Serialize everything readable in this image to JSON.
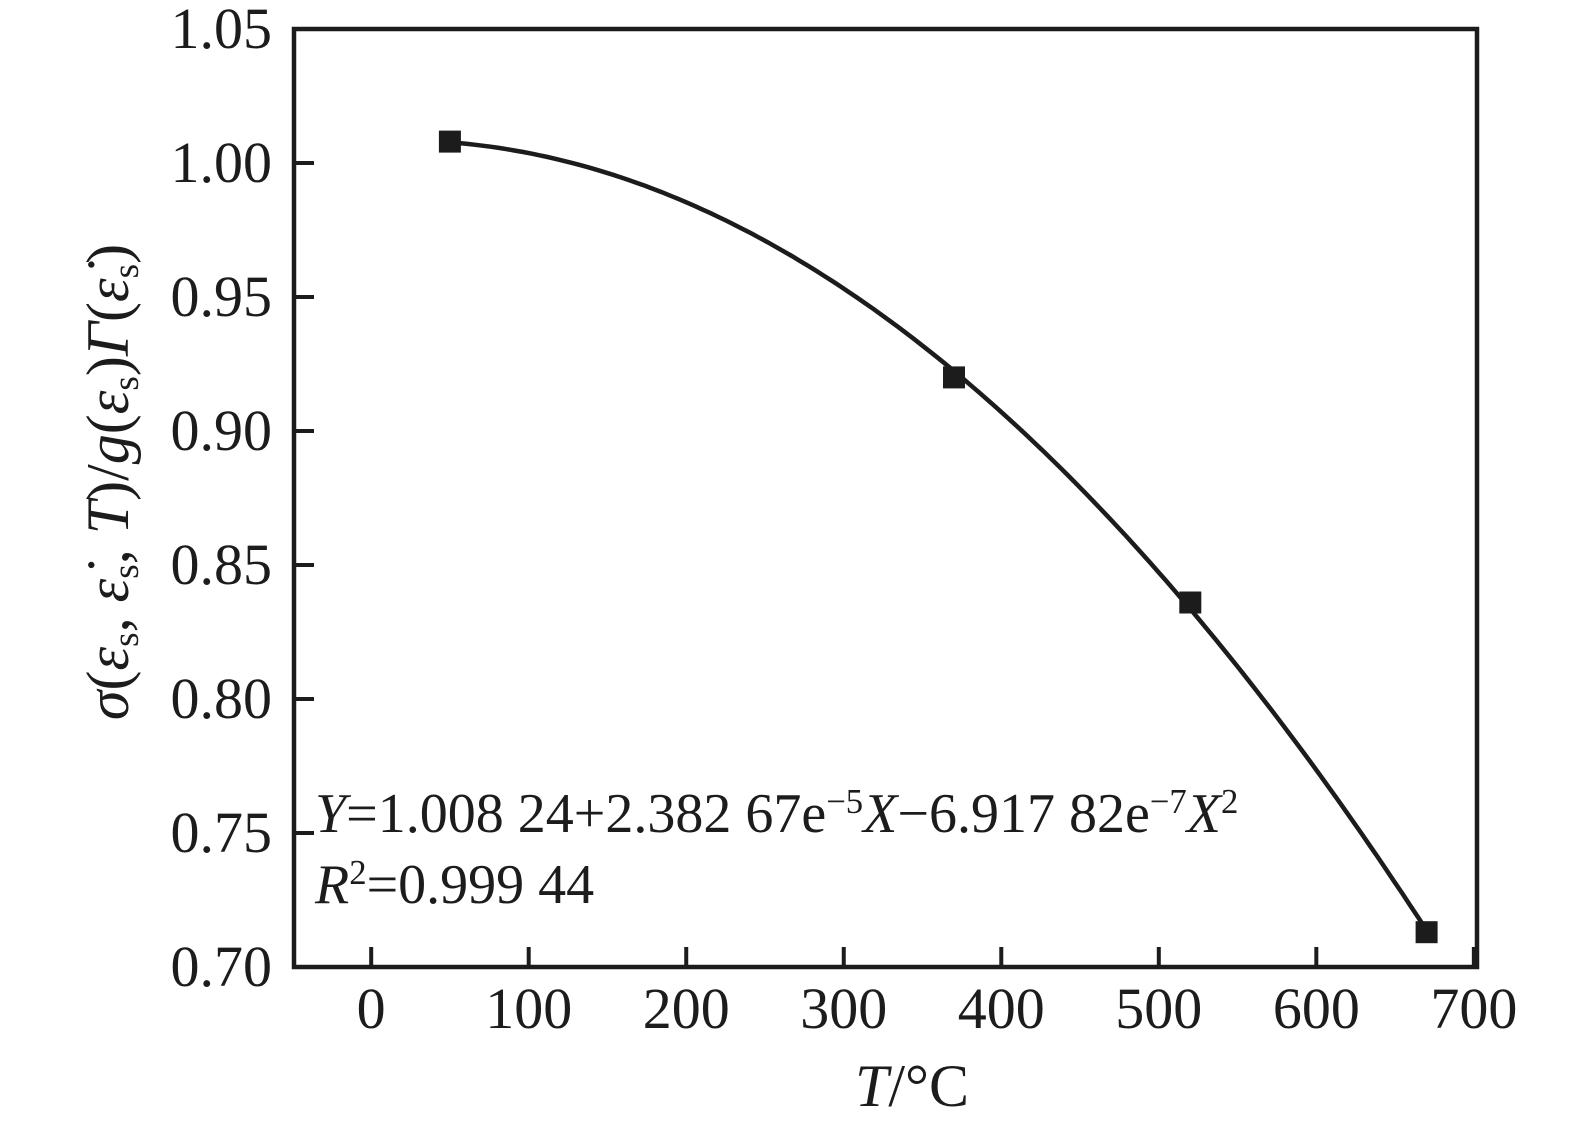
{
  "figure": {
    "background": "#ffffff",
    "ink_color": "#1c1c1c"
  },
  "chart_data": {
    "type": "line",
    "grid": false,
    "legend": false,
    "series": [
      {
        "name": "measured-points",
        "marker": "filled-square",
        "color": "#1c1c1c",
        "x": [
          50,
          370,
          520,
          670
        ],
        "y": [
          1.008,
          0.92,
          0.836,
          0.713
        ]
      }
    ],
    "fit_curve": {
      "name": "quadratic-fit",
      "coefficients": {
        "a0": 1.00824,
        "a1": 2.38267e-05,
        "a2": -6.91782e-07
      },
      "x_range": [
        50,
        670
      ],
      "color": "#1c1c1c"
    },
    "axes": {
      "xlim": [
        -49,
        702
      ],
      "ylim": [
        0.7,
        1.05
      ],
      "xticks": [
        {
          "value": 0,
          "label": "0"
        },
        {
          "value": 100,
          "label": "100"
        },
        {
          "value": 200,
          "label": "200"
        },
        {
          "value": 300,
          "label": "300"
        },
        {
          "value": 400,
          "label": "400"
        },
        {
          "value": 500,
          "label": "500"
        },
        {
          "value": 600,
          "label": "600"
        },
        {
          "value": 700,
          "label": "700"
        }
      ],
      "yticks": [
        {
          "value": 1.05,
          "label": "1.05"
        },
        {
          "value": 1.0,
          "label": "1.00"
        },
        {
          "value": 0.95,
          "label": "0.95"
        },
        {
          "value": 0.9,
          "label": "0.90"
        },
        {
          "value": 0.85,
          "label": "0.85"
        },
        {
          "value": 0.8,
          "label": "0.80"
        },
        {
          "value": 0.75,
          "label": "0.75"
        },
        {
          "value": 0.7,
          "label": "0.70"
        }
      ],
      "xlabel_text": "T/°C",
      "ylabel_text": "σ(εₛ, ε̇ₛ, T)/g(εₛ)Γ(ε̇ₛ)",
      "xlabel_segments": [
        {
          "t": "T",
          "s": "i"
        },
        {
          "t": "/°C",
          "s": "n"
        }
      ],
      "ylabel_segments": [
        {
          "t": "σ",
          "s": "i"
        },
        {
          "t": "(",
          "s": "n"
        },
        {
          "t": "ε",
          "s": "i"
        },
        {
          "t": "s",
          "s": "sub"
        },
        {
          "t": ", ",
          "s": "n"
        },
        {
          "t": "ε̇",
          "s": "i"
        },
        {
          "t": "s",
          "s": "sub"
        },
        {
          "t": ", ",
          "s": "n"
        },
        {
          "t": "T",
          "s": "i"
        },
        {
          "t": ")/",
          "s": "n"
        },
        {
          "t": "g",
          "s": "i"
        },
        {
          "t": "(",
          "s": "n"
        },
        {
          "t": "ε",
          "s": "i"
        },
        {
          "t": "s",
          "s": "sub"
        },
        {
          "t": ")",
          "s": "n"
        },
        {
          "t": "Γ",
          "s": "i"
        },
        {
          "t": "(",
          "s": "n"
        },
        {
          "t": "ε̇",
          "s": "i"
        },
        {
          "t": "s",
          "s": "sub"
        },
        {
          "t": ")",
          "s": "n"
        }
      ]
    },
    "annotation": {
      "equation_text": "Y=1.008 24+2.382 67e⁻⁵X−6.917 82e⁻⁷X²",
      "r_squared_text": "R²=0.999 44",
      "line1_segments": [
        {
          "t": "Y",
          "s": "i"
        },
        {
          "t": "=1.008 24+2.382 67e",
          "s": "n"
        },
        {
          "t": "−5",
          "s": "sup"
        },
        {
          "t": "X",
          "s": "i"
        },
        {
          "t": "−6.917 82e",
          "s": "n"
        },
        {
          "t": "−7",
          "s": "sup"
        },
        {
          "t": "X",
          "s": "i"
        },
        {
          "t": "2",
          "s": "sup"
        }
      ],
      "line2_segments": [
        {
          "t": "R",
          "s": "i"
        },
        {
          "t": "2",
          "s": "sup"
        },
        {
          "t": "=0.999 44",
          "s": "n"
        }
      ]
    }
  }
}
